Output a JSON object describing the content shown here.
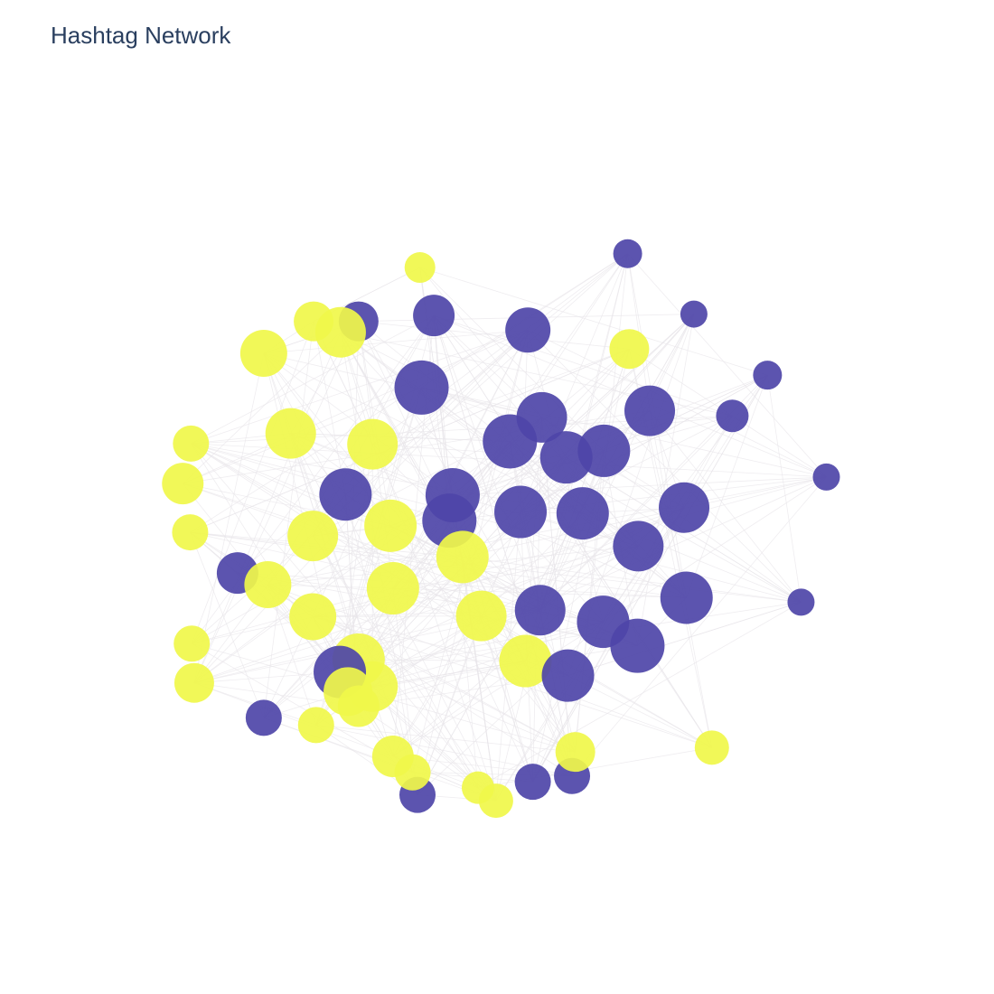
{
  "title": "Hashtag Network",
  "colors": {
    "group_a": "#4e45a8",
    "group_b": "#f0f74a",
    "edge": "#e8e6ea",
    "background": "#ffffff",
    "title": "#2a3f5f"
  },
  "chart_data": {
    "type": "network",
    "xlim": [
      0,
      1
    ],
    "ylim": [
      0,
      1
    ],
    "grid": false,
    "legend": "none",
    "nodes": [
      {
        "x": 0.657,
        "y": 0.85,
        "r": 16,
        "g": "a"
      },
      {
        "x": 0.403,
        "y": 0.831,
        "r": 17,
        "g": "b"
      },
      {
        "x": 0.738,
        "y": 0.767,
        "r": 15,
        "g": "a"
      },
      {
        "x": 0.828,
        "y": 0.683,
        "r": 16,
        "g": "a"
      },
      {
        "x": 0.273,
        "y": 0.757,
        "r": 22,
        "g": "b"
      },
      {
        "x": 0.328,
        "y": 0.757,
        "r": 22,
        "g": "a"
      },
      {
        "x": 0.42,
        "y": 0.765,
        "r": 23,
        "g": "a"
      },
      {
        "x": 0.535,
        "y": 0.745,
        "r": 25,
        "g": "a"
      },
      {
        "x": 0.659,
        "y": 0.719,
        "r": 22,
        "g": "b"
      },
      {
        "x": 0.212,
        "y": 0.713,
        "r": 26,
        "g": "b"
      },
      {
        "x": 0.306,
        "y": 0.742,
        "r": 28,
        "g": "b"
      },
      {
        "x": 0.405,
        "y": 0.666,
        "r": 30,
        "g": "a"
      },
      {
        "x": 0.552,
        "y": 0.625,
        "r": 28,
        "g": "a"
      },
      {
        "x": 0.628,
        "y": 0.579,
        "r": 29,
        "g": "a"
      },
      {
        "x": 0.684,
        "y": 0.634,
        "r": 28,
        "g": "a"
      },
      {
        "x": 0.785,
        "y": 0.627,
        "r": 18,
        "g": "a"
      },
      {
        "x": 0.582,
        "y": 0.57,
        "r": 29,
        "g": "a"
      },
      {
        "x": 0.513,
        "y": 0.592,
        "r": 30,
        "g": "a"
      },
      {
        "x": 0.443,
        "y": 0.518,
        "r": 30,
        "g": "a"
      },
      {
        "x": 0.9,
        "y": 0.543,
        "r": 15,
        "g": "a"
      },
      {
        "x": 0.123,
        "y": 0.589,
        "r": 20,
        "g": "b"
      },
      {
        "x": 0.245,
        "y": 0.603,
        "r": 28,
        "g": "b"
      },
      {
        "x": 0.312,
        "y": 0.519,
        "r": 29,
        "g": "a"
      },
      {
        "x": 0.726,
        "y": 0.501,
        "r": 28,
        "g": "a"
      },
      {
        "x": 0.439,
        "y": 0.483,
        "r": 30,
        "g": "a"
      },
      {
        "x": 0.345,
        "y": 0.588,
        "r": 28,
        "g": "b"
      },
      {
        "x": 0.113,
        "y": 0.534,
        "r": 23,
        "g": "b"
      },
      {
        "x": 0.272,
        "y": 0.462,
        "r": 28,
        "g": "b"
      },
      {
        "x": 0.367,
        "y": 0.476,
        "r": 29,
        "g": "b"
      },
      {
        "x": 0.526,
        "y": 0.495,
        "r": 29,
        "g": "a"
      },
      {
        "x": 0.602,
        "y": 0.493,
        "r": 29,
        "g": "a"
      },
      {
        "x": 0.67,
        "y": 0.448,
        "r": 28,
        "g": "a"
      },
      {
        "x": 0.869,
        "y": 0.371,
        "r": 15,
        "g": "a"
      },
      {
        "x": 0.122,
        "y": 0.467,
        "r": 20,
        "g": "b"
      },
      {
        "x": 0.18,
        "y": 0.411,
        "r": 23,
        "g": "a"
      },
      {
        "x": 0.217,
        "y": 0.395,
        "r": 26,
        "g": "b"
      },
      {
        "x": 0.37,
        "y": 0.39,
        "r": 29,
        "g": "b"
      },
      {
        "x": 0.55,
        "y": 0.36,
        "r": 28,
        "g": "a"
      },
      {
        "x": 0.627,
        "y": 0.344,
        "r": 29,
        "g": "a"
      },
      {
        "x": 0.729,
        "y": 0.377,
        "r": 29,
        "g": "a"
      },
      {
        "x": 0.455,
        "y": 0.433,
        "r": 29,
        "g": "b"
      },
      {
        "x": 0.272,
        "y": 0.351,
        "r": 26,
        "g": "b"
      },
      {
        "x": 0.478,
        "y": 0.352,
        "r": 28,
        "g": "b"
      },
      {
        "x": 0.532,
        "y": 0.29,
        "r": 29,
        "g": "b"
      },
      {
        "x": 0.669,
        "y": 0.311,
        "r": 30,
        "g": "a"
      },
      {
        "x": 0.124,
        "y": 0.314,
        "r": 20,
        "g": "b"
      },
      {
        "x": 0.328,
        "y": 0.292,
        "r": 29,
        "g": "b"
      },
      {
        "x": 0.584,
        "y": 0.27,
        "r": 29,
        "g": "a"
      },
      {
        "x": 0.345,
        "y": 0.255,
        "r": 28,
        "g": "b"
      },
      {
        "x": 0.305,
        "y": 0.275,
        "r": 29,
        "g": "a"
      },
      {
        "x": 0.37,
        "y": 0.159,
        "r": 23,
        "g": "b"
      },
      {
        "x": 0.212,
        "y": 0.212,
        "r": 20,
        "g": "a"
      },
      {
        "x": 0.315,
        "y": 0.248,
        "r": 27,
        "g": "b"
      },
      {
        "x": 0.127,
        "y": 0.26,
        "r": 22,
        "g": "b"
      },
      {
        "x": 0.474,
        "y": 0.116,
        "r": 18,
        "g": "b"
      },
      {
        "x": 0.589,
        "y": 0.132,
        "r": 20,
        "g": "a"
      },
      {
        "x": 0.593,
        "y": 0.165,
        "r": 22,
        "g": "b"
      },
      {
        "x": 0.541,
        "y": 0.124,
        "r": 20,
        "g": "a"
      },
      {
        "x": 0.76,
        "y": 0.171,
        "r": 19,
        "g": "b"
      },
      {
        "x": 0.4,
        "y": 0.106,
        "r": 20,
        "g": "a"
      },
      {
        "x": 0.394,
        "y": 0.137,
        "r": 20,
        "g": "b"
      },
      {
        "x": 0.276,
        "y": 0.202,
        "r": 20,
        "g": "b"
      },
      {
        "x": 0.328,
        "y": 0.228,
        "r": 23,
        "g": "b"
      },
      {
        "x": 0.496,
        "y": 0.098,
        "r": 19,
        "g": "b"
      }
    ]
  }
}
